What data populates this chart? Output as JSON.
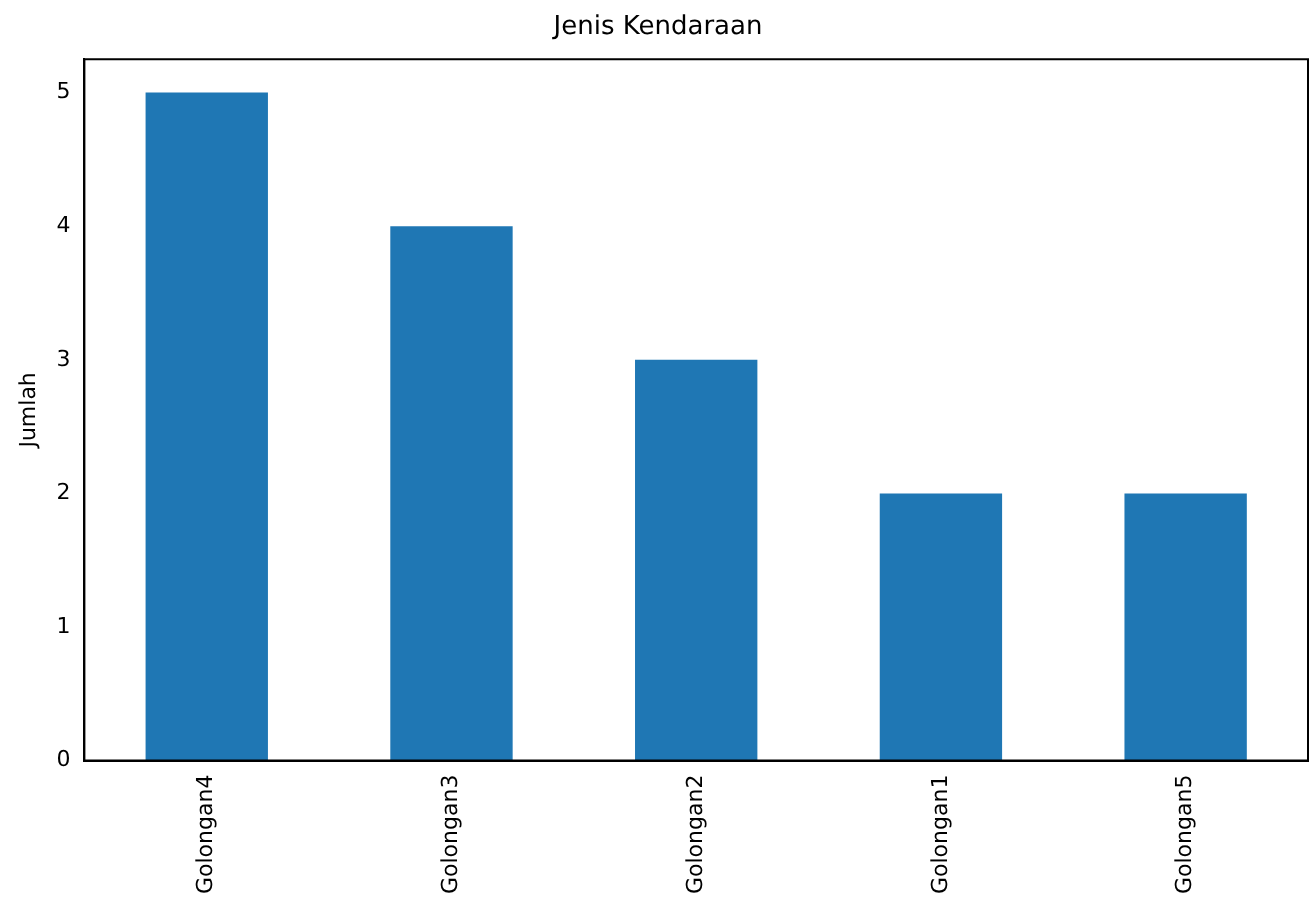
{
  "chart_data": {
    "type": "bar",
    "title": "Jenis Kendaraan",
    "ylabel": "Jumlah",
    "categories": [
      "Golongan4",
      "Golongan3",
      "Golongan2",
      "Golongan1",
      "Golongan5"
    ],
    "values": [
      5,
      4,
      3,
      2,
      2
    ],
    "color": "#1f77b4",
    "ylim": [
      0,
      5.25
    ],
    "yticks": [
      0,
      1,
      2,
      3,
      4,
      5
    ],
    "grid": false,
    "legend": false
  }
}
